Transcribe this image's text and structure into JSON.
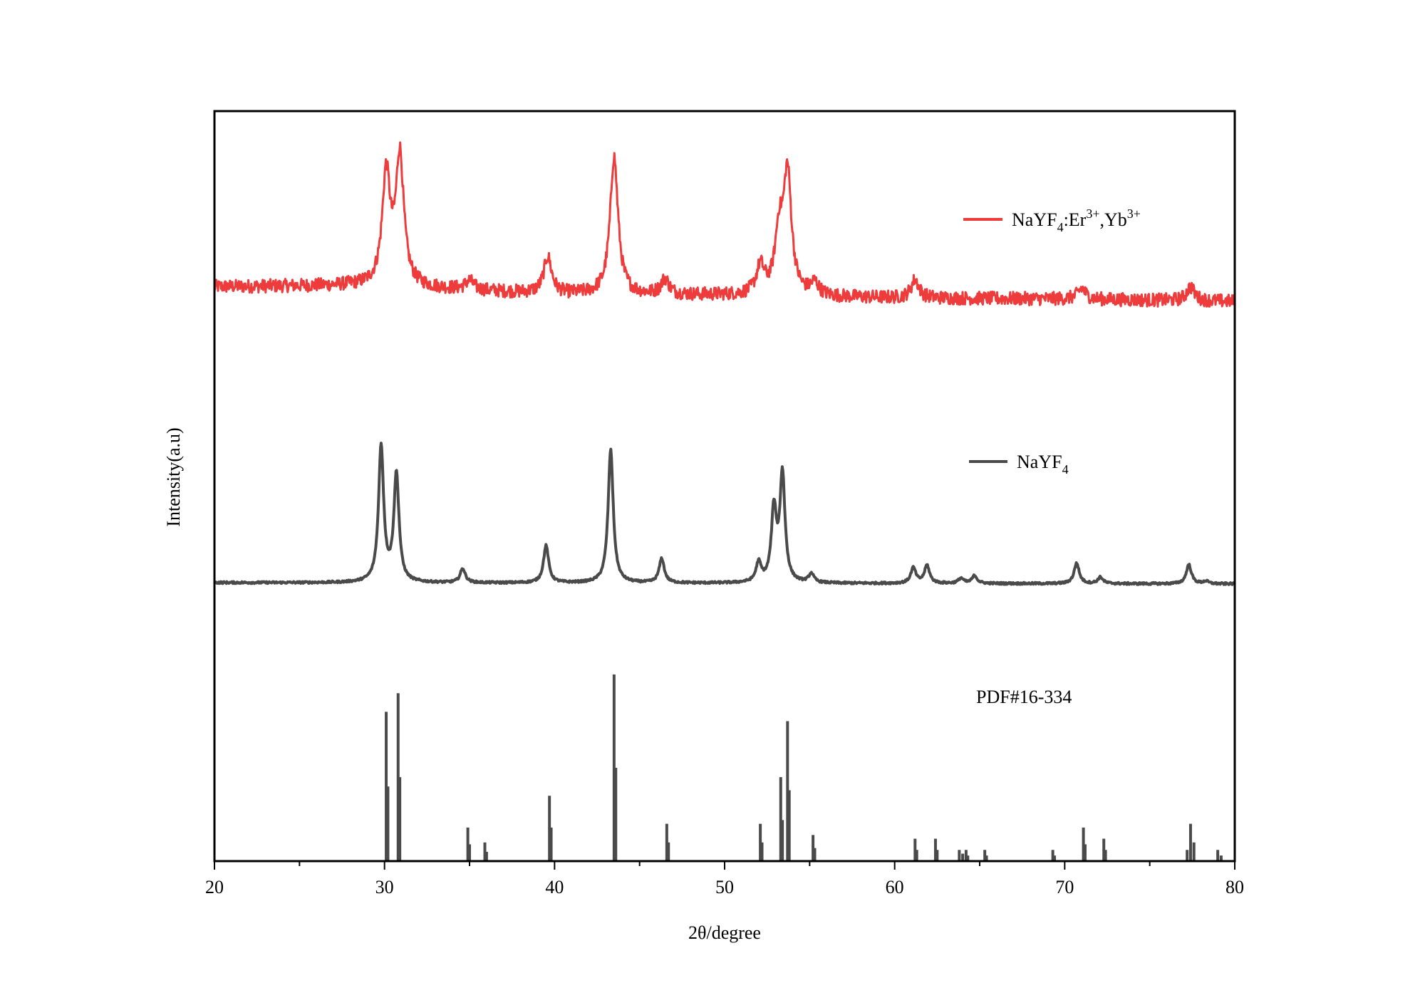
{
  "chart_data": {
    "type": "line",
    "xlabel": "2θ/degree",
    "ylabel": "Intensity(a.u)",
    "xlim": [
      20,
      80
    ],
    "x_ticks": [
      20,
      30,
      40,
      50,
      60,
      70,
      80
    ],
    "y_ticks_shown": false,
    "grid": false,
    "colors": {
      "doped": "#ee3b3b",
      "pure": "#4a4a4a",
      "reference": "#4a4a4a",
      "frame": "#000000"
    },
    "series": [
      {
        "name": "NaYF4:Er3+,Yb3+",
        "label_parts": {
          "base": "NaYF",
          "sub": "4",
          "mid1": ":Er",
          "sup1": "3+",
          "mid2": ",Yb",
          "sup2": "3+"
        },
        "style": "noisy-line",
        "baseline": [
          [
            20,
            0.8
          ],
          [
            28,
            0.84
          ],
          [
            30,
            0.82
          ],
          [
            40,
            0.55
          ],
          [
            50,
            0.52
          ],
          [
            60,
            0.43
          ],
          [
            70,
            0.4
          ],
          [
            80,
            0.32
          ]
        ],
        "noise": 0.22,
        "peaks": [
          [
            30.1,
            3.6
          ],
          [
            30.9,
            4.2
          ],
          [
            35.0,
            0.3
          ],
          [
            39.6,
            1.2
          ],
          [
            43.5,
            4.5
          ],
          [
            46.5,
            0.5
          ],
          [
            52.1,
            0.9
          ],
          [
            53.2,
            1.9
          ],
          [
            53.7,
            3.9
          ],
          [
            55.3,
            0.4
          ],
          [
            61.2,
            0.6
          ],
          [
            71.0,
            0.35
          ],
          [
            77.4,
            0.45
          ]
        ],
        "peak_width": 0.28
      },
      {
        "name": "NaYF4",
        "label_parts": {
          "base": "NaYF",
          "sub": "4"
        },
        "style": "smooth-line",
        "baseline": [
          [
            20,
            0.0
          ],
          [
            80,
            -0.05
          ]
        ],
        "noise": 0.04,
        "peaks": [
          [
            29.8,
            5.3
          ],
          [
            30.7,
            4.2
          ],
          [
            34.6,
            0.55
          ],
          [
            39.5,
            1.45
          ],
          [
            43.3,
            5.2
          ],
          [
            46.3,
            0.95
          ],
          [
            52.0,
            0.75
          ],
          [
            52.9,
            2.8
          ],
          [
            53.4,
            4.2
          ],
          [
            55.1,
            0.35
          ],
          [
            61.1,
            0.6
          ],
          [
            61.9,
            0.7
          ],
          [
            63.9,
            0.2
          ],
          [
            64.7,
            0.3
          ],
          [
            70.7,
            0.8
          ],
          [
            72.1,
            0.25
          ],
          [
            77.3,
            0.75
          ],
          [
            78.3,
            0.1
          ]
        ],
        "peak_width": 0.18
      },
      {
        "name": "PDF#16-334",
        "style": "sticks",
        "sticks": [
          [
            30.1,
            0.8
          ],
          [
            30.2,
            0.4
          ],
          [
            30.8,
            0.9
          ],
          [
            30.9,
            0.45
          ],
          [
            34.9,
            0.18
          ],
          [
            35.0,
            0.09
          ],
          [
            35.9,
            0.1
          ],
          [
            36.0,
            0.05
          ],
          [
            39.7,
            0.35
          ],
          [
            39.8,
            0.18
          ],
          [
            43.5,
            1.0
          ],
          [
            43.6,
            0.5
          ],
          [
            46.6,
            0.2
          ],
          [
            46.7,
            0.1
          ],
          [
            52.1,
            0.2
          ],
          [
            52.2,
            0.1
          ],
          [
            53.3,
            0.45
          ],
          [
            53.4,
            0.22
          ],
          [
            53.7,
            0.75
          ],
          [
            53.8,
            0.38
          ],
          [
            55.2,
            0.14
          ],
          [
            55.3,
            0.07
          ],
          [
            61.2,
            0.12
          ],
          [
            61.3,
            0.06
          ],
          [
            62.4,
            0.12
          ],
          [
            62.5,
            0.06
          ],
          [
            63.8,
            0.06
          ],
          [
            64.0,
            0.04
          ],
          [
            64.2,
            0.06
          ],
          [
            64.3,
            0.03
          ],
          [
            65.3,
            0.06
          ],
          [
            65.4,
            0.03
          ],
          [
            69.3,
            0.06
          ],
          [
            69.4,
            0.03
          ],
          [
            71.1,
            0.18
          ],
          [
            71.2,
            0.09
          ],
          [
            72.3,
            0.12
          ],
          [
            72.4,
            0.06
          ],
          [
            77.2,
            0.06
          ],
          [
            77.4,
            0.2
          ],
          [
            77.6,
            0.1
          ],
          [
            79.0,
            0.06
          ],
          [
            79.2,
            0.03
          ]
        ]
      }
    ]
  }
}
